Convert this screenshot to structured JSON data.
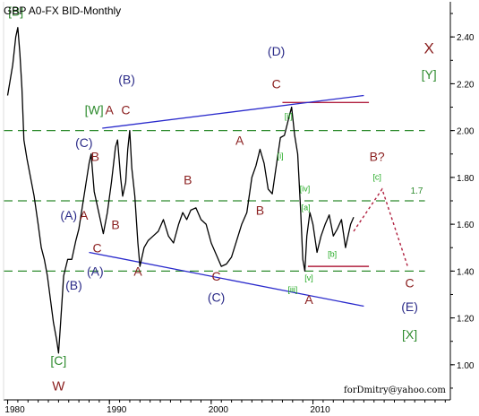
{
  "header": {
    "title": "GBP A0-FX BID-Monthly"
  },
  "footer": {
    "credit": "forDmitry@yahoo.com"
  },
  "chart_data": {
    "type": "line",
    "title": "GBP A0-FX BID-Monthly",
    "xlabel": "",
    "ylabel": "",
    "xlim": [
      1979.6,
      2023.5
    ],
    "ylim": [
      0.85,
      2.55
    ],
    "x_ticks": [
      {
        "value": 1980,
        "label": "1980"
      },
      {
        "value": 1990,
        "label": "1990"
      },
      {
        "value": 2000,
        "label": "2000"
      },
      {
        "value": 2010,
        "label": "2010"
      }
    ],
    "y_ticks": [
      {
        "value": 1.0,
        "label": "1.00"
      },
      {
        "value": 1.2,
        "label": "1.20"
      },
      {
        "value": 1.4,
        "label": "1.40"
      },
      {
        "value": 1.6,
        "label": "1.60"
      },
      {
        "value": 1.8,
        "label": "1.80"
      },
      {
        "value": 2.0,
        "label": "2.00"
      },
      {
        "value": 2.2,
        "label": "2.20"
      },
      {
        "value": 2.4,
        "label": "2.40"
      }
    ],
    "grid": false,
    "colors": {
      "price": "#000000",
      "channel": "#2a2acc",
      "guide": "#2e8b2e",
      "target": "#b0203f",
      "wave_red": "#8b2020",
      "wave_blue": "#2b2b88",
      "wave_green": "#2e8b2e",
      "tick_green": "#22aa22",
      "axis": "#000000"
    },
    "series": [
      {
        "values": [
          [
            1980.0,
            2.15
          ],
          [
            1980.5,
            2.28
          ],
          [
            1980.8,
            2.4
          ],
          [
            1981.0,
            2.44
          ],
          [
            1981.2,
            2.33
          ],
          [
            1981.4,
            2.18
          ],
          [
            1981.6,
            1.96
          ],
          [
            1981.9,
            1.88
          ],
          [
            1982.2,
            1.81
          ],
          [
            1982.6,
            1.72
          ],
          [
            1983.0,
            1.6
          ],
          [
            1983.3,
            1.5
          ],
          [
            1983.6,
            1.45
          ],
          [
            1983.9,
            1.38
          ],
          [
            1984.2,
            1.28
          ],
          [
            1984.5,
            1.18
          ],
          [
            1984.8,
            1.11
          ],
          [
            1985.0,
            1.05
          ],
          [
            1985.2,
            1.18
          ],
          [
            1985.5,
            1.38
          ],
          [
            1985.9,
            1.45
          ],
          [
            1986.3,
            1.45
          ],
          [
            1986.7,
            1.53
          ],
          [
            1987.0,
            1.58
          ],
          [
            1987.5,
            1.72
          ],
          [
            1988.0,
            1.86
          ],
          [
            1988.2,
            1.9
          ],
          [
            1988.5,
            1.74
          ],
          [
            1988.8,
            1.68
          ],
          [
            1989.1,
            1.62
          ],
          [
            1989.4,
            1.56
          ],
          [
            1989.8,
            1.65
          ],
          [
            1990.2,
            1.78
          ],
          [
            1990.6,
            1.93
          ],
          [
            1990.8,
            1.96
          ],
          [
            1991.1,
            1.8
          ],
          [
            1991.3,
            1.72
          ],
          [
            1991.6,
            1.78
          ],
          [
            1991.8,
            1.92
          ],
          [
            1992.0,
            2.0
          ],
          [
            1992.2,
            1.84
          ],
          [
            1992.5,
            1.72
          ],
          [
            1992.8,
            1.52
          ],
          [
            1993.0,
            1.42
          ],
          [
            1993.4,
            1.5
          ],
          [
            1993.8,
            1.53
          ],
          [
            1994.3,
            1.55
          ],
          [
            1994.8,
            1.57
          ],
          [
            1995.3,
            1.62
          ],
          [
            1995.8,
            1.55
          ],
          [
            1996.3,
            1.52
          ],
          [
            1996.8,
            1.6
          ],
          [
            1997.2,
            1.65
          ],
          [
            1997.6,
            1.62
          ],
          [
            1998.0,
            1.66
          ],
          [
            1998.5,
            1.67
          ],
          [
            1999.0,
            1.62
          ],
          [
            1999.5,
            1.6
          ],
          [
            2000.0,
            1.52
          ],
          [
            2000.5,
            1.47
          ],
          [
            2001.0,
            1.42
          ],
          [
            2001.5,
            1.43
          ],
          [
            2002.0,
            1.46
          ],
          [
            2002.5,
            1.53
          ],
          [
            2003.0,
            1.6
          ],
          [
            2003.5,
            1.65
          ],
          [
            2004.0,
            1.8
          ],
          [
            2004.4,
            1.85
          ],
          [
            2004.8,
            1.92
          ],
          [
            2005.2,
            1.86
          ],
          [
            2005.6,
            1.75
          ],
          [
            2006.0,
            1.73
          ],
          [
            2006.4,
            1.85
          ],
          [
            2006.8,
            1.97
          ],
          [
            2007.2,
            1.98
          ],
          [
            2007.6,
            2.05
          ],
          [
            2007.9,
            2.1
          ],
          [
            2008.2,
            1.98
          ],
          [
            2008.5,
            1.9
          ],
          [
            2008.8,
            1.65
          ],
          [
            2009.0,
            1.45
          ],
          [
            2009.2,
            1.4
          ],
          [
            2009.4,
            1.55
          ],
          [
            2009.7,
            1.65
          ],
          [
            2010.0,
            1.6
          ],
          [
            2010.4,
            1.48
          ],
          [
            2010.8,
            1.55
          ],
          [
            2011.2,
            1.6
          ],
          [
            2011.6,
            1.64
          ],
          [
            2012.0,
            1.55
          ],
          [
            2012.4,
            1.58
          ],
          [
            2012.8,
            1.62
          ],
          [
            2013.2,
            1.5
          ],
          [
            2013.7,
            1.6
          ],
          [
            2014.0,
            1.63
          ]
        ]
      }
    ],
    "horizontal_lines": [
      {
        "y": 2.0,
        "style": "dashed",
        "color": "guide",
        "x_from": 1979.6,
        "x_to": 2021.0
      },
      {
        "y": 1.7,
        "style": "dashed",
        "color": "guide",
        "x_from": 1979.6,
        "x_to": 2021.0,
        "label": "1.7"
      },
      {
        "y": 1.4,
        "style": "dashed",
        "color": "guide",
        "x_from": 1979.6,
        "x_to": 2021.0
      },
      {
        "y": 2.12,
        "style": "solid",
        "color": "target",
        "x_from": 2007.0,
        "x_to": 2015.5
      },
      {
        "y": 1.42,
        "style": "solid",
        "color": "target",
        "x_from": 2009.5,
        "x_to": 2015.5
      }
    ],
    "trend_lines": [
      {
        "name": "upper",
        "from": [
          1989.3,
          2.01
        ],
        "to": [
          2015.0,
          2.15
        ],
        "color": "channel"
      },
      {
        "name": "lower",
        "from": [
          1988.0,
          1.48
        ],
        "to": [
          2015.0,
          1.25
        ],
        "color": "channel"
      }
    ],
    "forecast": {
      "color": "target",
      "points": [
        [
          2014.0,
          1.57
        ],
        [
          2016.8,
          1.75
        ],
        [
          2019.3,
          1.42
        ]
      ]
    },
    "annotations": [
      {
        "text": "[B]",
        "x": 1980.8,
        "y": 2.49,
        "color": "wave_green",
        "size": 14
      },
      {
        "text": "[C]",
        "x": 1985.0,
        "y": 1.0,
        "color": "wave_green",
        "size": 14
      },
      {
        "text": "W",
        "x": 1985.0,
        "y": 0.89,
        "color": "wave_red",
        "size": 15
      },
      {
        "text": "[W]",
        "x": 1988.5,
        "y": 2.07,
        "color": "wave_green",
        "size": 14
      },
      {
        "text": "(C)",
        "x": 1987.5,
        "y": 1.93,
        "color": "wave_blue",
        "size": 14
      },
      {
        "text": "B",
        "x": 1988.6,
        "y": 1.87,
        "color": "wave_red",
        "size": 14
      },
      {
        "text": "(A)",
        "x": 1986.0,
        "y": 1.62,
        "color": "wave_blue",
        "size": 14
      },
      {
        "text": "A",
        "x": 1987.5,
        "y": 1.62,
        "color": "wave_red",
        "size": 14
      },
      {
        "text": "C",
        "x": 1988.8,
        "y": 1.48,
        "color": "wave_red",
        "size": 14
      },
      {
        "text": "(B)",
        "x": 1986.5,
        "y": 1.32,
        "color": "wave_blue",
        "size": 14
      },
      {
        "text": "(A)",
        "x": 1988.6,
        "y": 1.38,
        "color": "wave_blue",
        "size": 14
      },
      {
        "text": "(B)",
        "x": 1991.7,
        "y": 2.2,
        "color": "wave_blue",
        "size": 14
      },
      {
        "text": "A",
        "x": 1990.0,
        "y": 2.07,
        "color": "wave_red",
        "size": 14
      },
      {
        "text": "C",
        "x": 1991.6,
        "y": 2.07,
        "color": "wave_red",
        "size": 14
      },
      {
        "text": "B",
        "x": 1990.6,
        "y": 1.58,
        "color": "wave_red",
        "size": 14
      },
      {
        "text": "A",
        "x": 1992.8,
        "y": 1.38,
        "color": "wave_red",
        "size": 14
      },
      {
        "text": "B",
        "x": 1997.7,
        "y": 1.77,
        "color": "wave_red",
        "size": 14
      },
      {
        "text": "C",
        "x": 2000.5,
        "y": 1.36,
        "color": "wave_red",
        "size": 14
      },
      {
        "text": "(C)",
        "x": 2000.5,
        "y": 1.27,
        "color": "wave_blue",
        "size": 14
      },
      {
        "text": "A",
        "x": 2002.8,
        "y": 1.94,
        "color": "wave_red",
        "size": 14
      },
      {
        "text": "B",
        "x": 2004.8,
        "y": 1.64,
        "color": "wave_red",
        "size": 14
      },
      {
        "text": "(D)",
        "x": 2006.4,
        "y": 2.32,
        "color": "wave_blue",
        "size": 14
      },
      {
        "text": "C",
        "x": 2006.4,
        "y": 2.18,
        "color": "wave_red",
        "size": 14
      },
      {
        "text": "[ii]",
        "x": 2007.6,
        "y": 2.05,
        "color": "tick_green",
        "size": 9
      },
      {
        "text": "[i]",
        "x": 2006.8,
        "y": 1.88,
        "color": "tick_green",
        "size": 9
      },
      {
        "text": "[iv]",
        "x": 2009.2,
        "y": 1.74,
        "color": "tick_green",
        "size": 9
      },
      {
        "text": "[a]",
        "x": 2009.3,
        "y": 1.66,
        "color": "tick_green",
        "size": 9
      },
      {
        "text": "[b]",
        "x": 2011.9,
        "y": 1.46,
        "color": "tick_green",
        "size": 9
      },
      {
        "text": "[v]",
        "x": 2009.6,
        "y": 1.36,
        "color": "tick_green",
        "size": 9
      },
      {
        "text": "[iii]",
        "x": 2008.0,
        "y": 1.31,
        "color": "tick_green",
        "size": 9
      },
      {
        "text": "A",
        "x": 2009.6,
        "y": 1.26,
        "color": "wave_red",
        "size": 14
      },
      {
        "text": "[c]",
        "x": 2016.3,
        "y": 1.79,
        "color": "tick_green",
        "size": 9
      },
      {
        "text": "B?",
        "x": 2016.3,
        "y": 1.87,
        "color": "wave_red",
        "size": 14
      },
      {
        "text": "C",
        "x": 2019.5,
        "y": 1.33,
        "color": "wave_red",
        "size": 14
      },
      {
        "text": "(E)",
        "x": 2019.5,
        "y": 1.23,
        "color": "wave_blue",
        "size": 14
      },
      {
        "text": "[X]",
        "x": 2019.5,
        "y": 1.11,
        "color": "wave_green",
        "size": 14
      },
      {
        "text": "X",
        "x": 2021.4,
        "y": 2.33,
        "color": "wave_red",
        "size": 17
      },
      {
        "text": "[Y]",
        "x": 2021.4,
        "y": 2.22,
        "color": "wave_green",
        "size": 14
      }
    ]
  }
}
